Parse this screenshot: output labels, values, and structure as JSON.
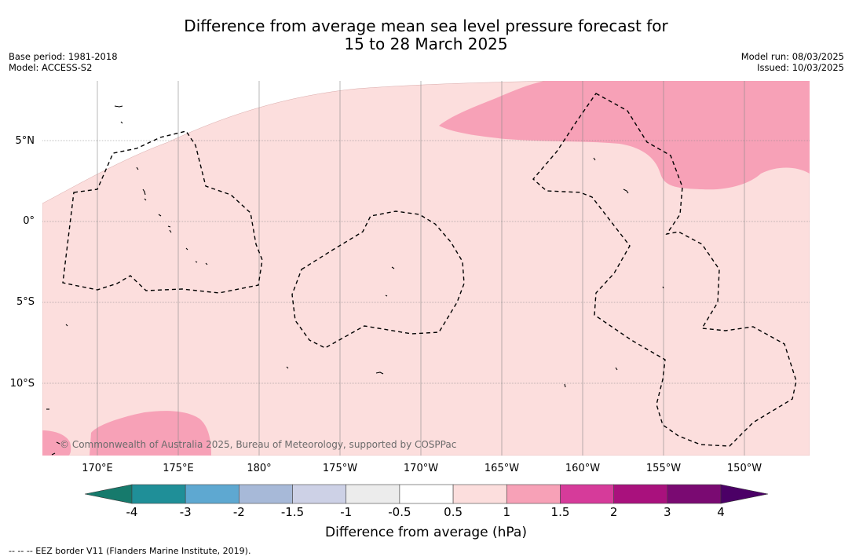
{
  "title": {
    "line1": "Difference from average mean sea level pressure forecast for",
    "line2": "15 to 28 March 2025"
  },
  "meta": {
    "base_period": "Base period: 1981-2018",
    "model": "Model: ACCESS-S2",
    "model_run": "Model run: 08/03/2025",
    "issued": "Issued: 10/03/2025"
  },
  "map": {
    "lat_labels": [
      "5°N",
      "0°",
      "5°S",
      "10°S"
    ],
    "lon_labels": [
      "170°E",
      "175°E",
      "180°",
      "175°W",
      "170°W",
      "165°W",
      "160°W",
      "155°W",
      "150°W"
    ],
    "copyright": "© Commonwealth of Australia 2025, Bureau of Meteorology, supported by COSPPac",
    "colors": {
      "land": "#ffffff",
      "band_0_5_to_1": "#fcdedd",
      "band_1_to_1_5": "#f7a1b7",
      "eez_border": "#000000",
      "gridline": "#777777"
    }
  },
  "legend": {
    "tick_labels": [
      "-4",
      "-3",
      "-2",
      "-1.5",
      "-1",
      "-0.5",
      "0.5",
      "1",
      "1.5",
      "2",
      "3",
      "4"
    ],
    "colors": [
      "#167a6c",
      "#1f8f98",
      "#5ea8d1",
      "#a7b9d8",
      "#cdd1e6",
      "#ececec",
      "#ffffff",
      "#fcdedd",
      "#f7a1b7",
      "#d63b9a",
      "#a9117d",
      "#7a0a72",
      "#4b0066"
    ],
    "label": "Difference from average (hPa)"
  },
  "footnote": "--  --  -- EEZ border V11 (Flanders Marine Institute, 2019)."
}
